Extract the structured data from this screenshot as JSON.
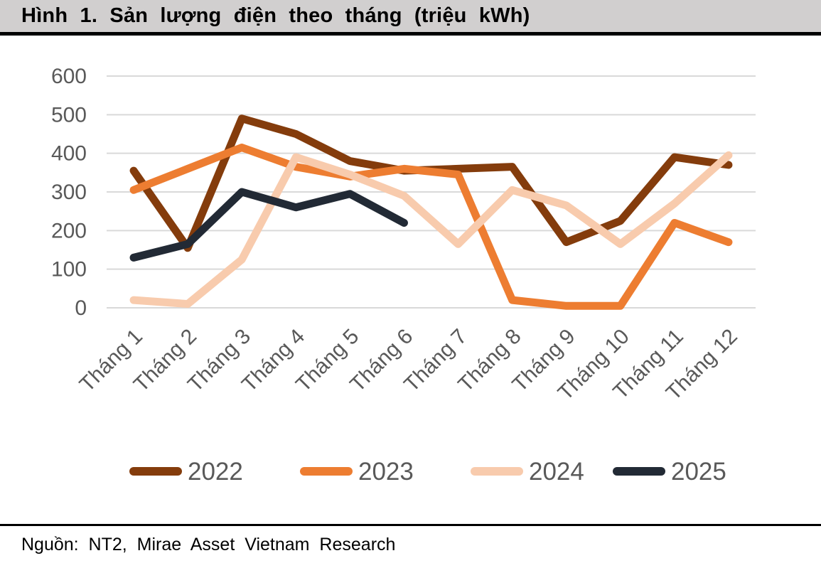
{
  "header": {
    "title": "Hình 1. Sản lượng điện theo tháng (triệu kWh)"
  },
  "footer": {
    "source": "Nguồn: NT2, Mirae Asset Vietnam Research"
  },
  "colors": {
    "title_bar_bg": "#D1CFCF",
    "rule": "#000000",
    "gridline": "#D9D9D9",
    "axis_label": "#595959",
    "legend_label": "#595959",
    "background": "#FFFFFF"
  },
  "chart_data": {
    "type": "line",
    "title": "Hình 1. Sản lượng điện theo tháng (triệu kWh)",
    "xlabel": "",
    "ylabel": "",
    "ylim": [
      0,
      600
    ],
    "ytick_step": 100,
    "ytick_labels": [
      "0",
      "100",
      "200",
      "300",
      "400",
      "500",
      "600"
    ],
    "grid": "horizontal",
    "legend_position": "bottom",
    "categories": [
      "Tháng 1",
      "Tháng 2",
      "Tháng 3",
      "Tháng 4",
      "Tháng 5",
      "Tháng 6",
      "Tháng 7",
      "Tháng 8",
      "Tháng 9",
      "Tháng 10",
      "Tháng 11",
      "Tháng 12"
    ],
    "series": [
      {
        "name": "2022",
        "color": "#843C0C",
        "values": [
          355,
          155,
          490,
          450,
          380,
          355,
          360,
          365,
          170,
          225,
          390,
          370
        ]
      },
      {
        "name": "2023",
        "color": "#ED7D31",
        "values": [
          305,
          360,
          415,
          365,
          340,
          360,
          345,
          20,
          5,
          5,
          220,
          170
        ]
      },
      {
        "name": "2024",
        "color": "#F8CBAD",
        "values": [
          20,
          10,
          125,
          390,
          345,
          290,
          165,
          305,
          265,
          165,
          270,
          395
        ]
      },
      {
        "name": "2025",
        "color": "#222A35",
        "values": [
          130,
          165,
          300,
          260,
          295,
          220,
          null,
          null,
          null,
          null,
          null,
          null
        ]
      }
    ]
  }
}
